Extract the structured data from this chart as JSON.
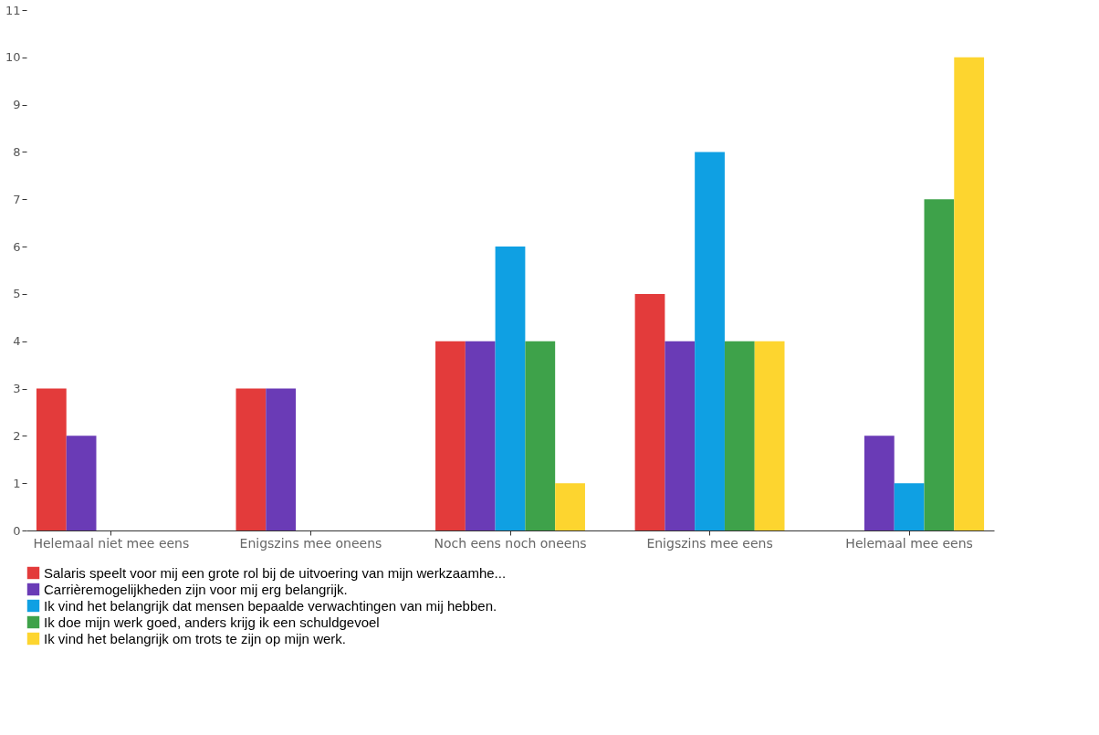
{
  "chart_data": {
    "type": "bar",
    "categories": [
      "Helemaal niet mee eens",
      "Enigszins mee oneens",
      "Noch eens noch oneens",
      "Enigszins mee eens",
      "Helemaal mee eens"
    ],
    "series": [
      {
        "name": "Salaris speelt voor mij een grote rol bij de uitvoering van mijn werkzaamhe...",
        "color": "#e33b3b",
        "values": [
          3,
          3,
          4,
          5,
          0
        ]
      },
      {
        "name": "Carrièremogelijkheden zijn voor mij erg belangrijk.",
        "color": "#6a3bb6",
        "values": [
          2,
          3,
          4,
          4,
          2
        ]
      },
      {
        "name": "Ik vind het belangrijk dat mensen bepaalde verwachtingen van mij hebben.",
        "color": "#0fa0e3",
        "values": [
          0,
          0,
          6,
          8,
          1
        ]
      },
      {
        "name": "Ik doe mijn werk goed, anders krijg ik een schuldgevoel",
        "color": "#3ea24a",
        "values": [
          0,
          0,
          4,
          4,
          7
        ]
      },
      {
        "name": "Ik vind het belangrijk om trots te zijn op mijn werk.",
        "color": "#fdd52f",
        "values": [
          0,
          0,
          1,
          4,
          10
        ]
      }
    ],
    "ylim": [
      0,
      11
    ],
    "yticks": [
      0,
      1,
      2,
      3,
      4,
      5,
      6,
      7,
      8,
      9,
      10,
      11
    ],
    "grid": false,
    "legend": "bottom"
  }
}
